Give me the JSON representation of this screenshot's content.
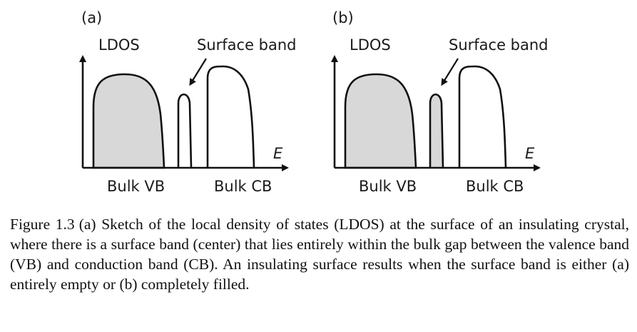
{
  "panels": [
    {
      "id": "a",
      "tag": "(a)",
      "ldos_label": "LDOS",
      "surface_label": "Surface band",
      "e_label": "E",
      "vb_label": "Bulk VB",
      "cb_label": "Bulk CB",
      "surface_band_filled": false
    },
    {
      "id": "b",
      "tag": "(b)",
      "ldos_label": "LDOS",
      "surface_label": "Surface band",
      "e_label": "E",
      "vb_label": "Bulk VB",
      "cb_label": "Bulk CB",
      "surface_band_filled": true
    }
  ],
  "colors": {
    "fill": "#d8d8d8",
    "stroke": "#111111"
  },
  "caption": {
    "number": "Figure 1.3",
    "text": "(a) Sketch of the local density of states (LDOS) at the surface of an insulating crystal, where there is a surface band (center) that lies entirely within the bulk gap between the valence band (VB) and conduction band (CB). An insulating surface results when the surface band is either (a) entirely empty or (b) completely filled."
  }
}
